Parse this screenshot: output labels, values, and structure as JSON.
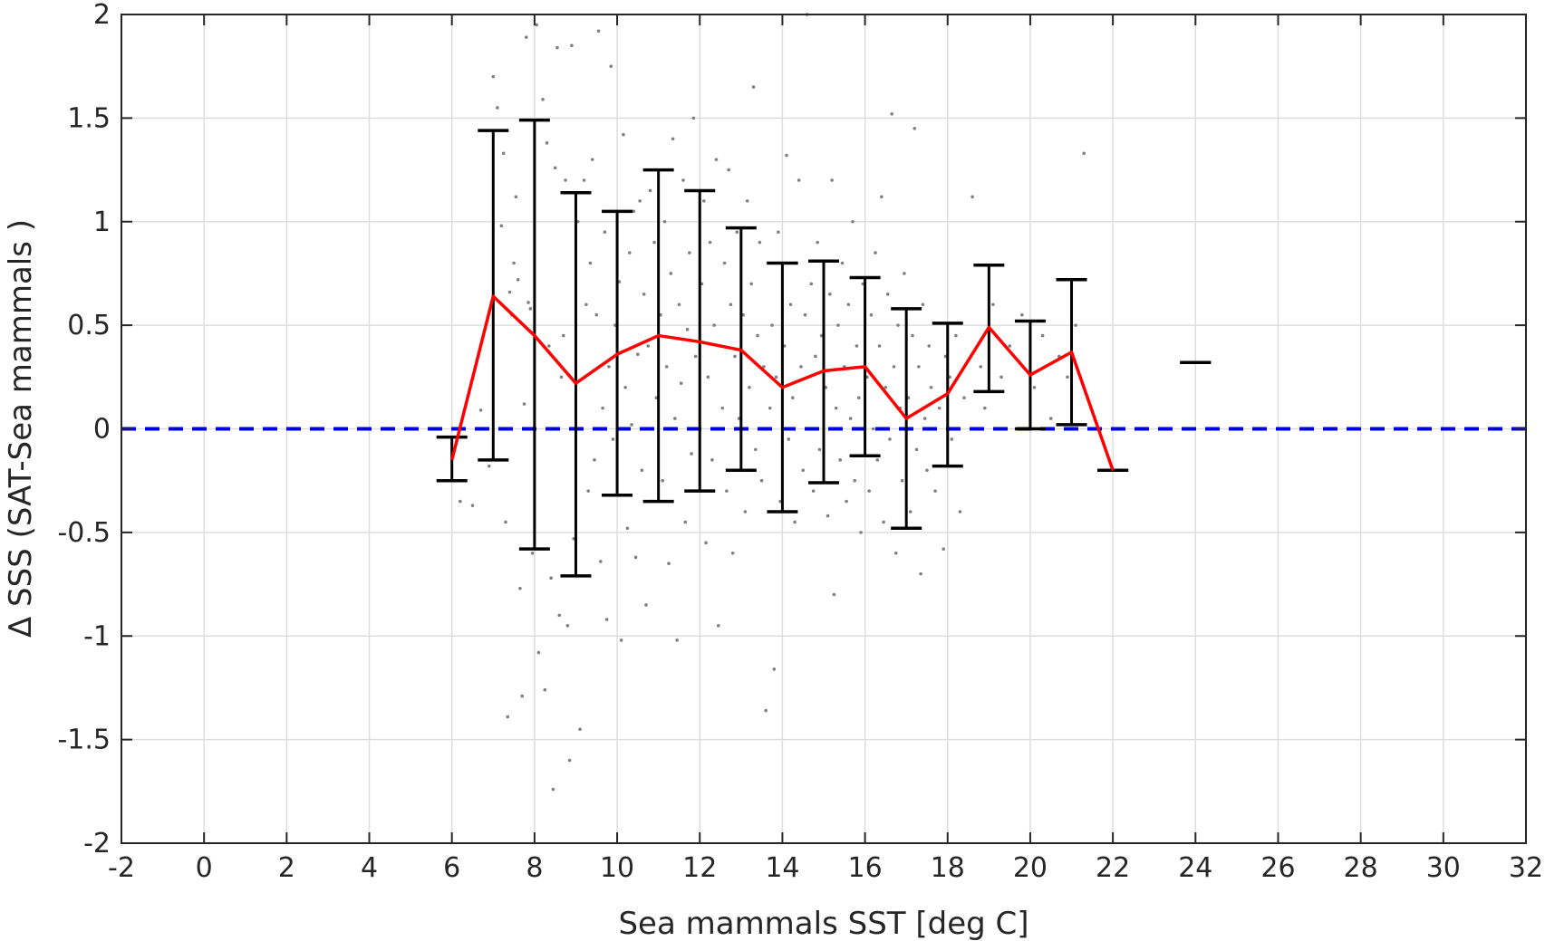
{
  "chart_data": {
    "type": "scatter",
    "title": "",
    "xlabel": "Sea mammals  SST [deg C]",
    "ylabel": "Δ SSS (SAT-Sea mammals )",
    "xlim": [
      -2,
      32
    ],
    "ylim": [
      -2,
      2
    ],
    "xticks": [
      "-2",
      "0",
      "2",
      "4",
      "6",
      "8",
      "10",
      "12",
      "14",
      "16",
      "18",
      "20",
      "22",
      "24",
      "26",
      "28",
      "30",
      "32"
    ],
    "yticks": [
      "-2",
      "-1.5",
      "-1",
      "-0.5",
      "0",
      "0.5",
      "1",
      "1.5",
      "2"
    ],
    "grid": true,
    "legend": "none",
    "colors": {
      "points": "#808080",
      "mean_line": "#ff0000",
      "error_bars": "#000000",
      "zero_line": "#0000dd",
      "grid": "#dddddd",
      "axis": "#262626"
    },
    "mean_line": {
      "x": [
        6,
        7,
        8,
        9,
        10,
        11,
        12,
        13,
        14,
        15,
        16,
        17,
        18,
        19,
        20,
        21,
        22
      ],
      "y": [
        -0.15,
        0.64,
        0.45,
        0.22,
        0.36,
        0.45,
        0.42,
        0.38,
        0.2,
        0.28,
        0.3,
        0.05,
        0.17,
        0.49,
        0.26,
        0.37,
        -0.2
      ]
    },
    "error_bars": [
      {
        "x": 6,
        "low": -0.25,
        "high": -0.04
      },
      {
        "x": 7,
        "low": -0.15,
        "high": 1.44
      },
      {
        "x": 8,
        "low": -0.58,
        "high": 1.49
      },
      {
        "x": 9,
        "low": -0.71,
        "high": 1.14
      },
      {
        "x": 10,
        "low": -0.32,
        "high": 1.05
      },
      {
        "x": 11,
        "low": -0.35,
        "high": 1.25
      },
      {
        "x": 12,
        "low": -0.3,
        "high": 1.15
      },
      {
        "x": 13,
        "low": -0.2,
        "high": 0.97
      },
      {
        "x": 14,
        "low": -0.4,
        "high": 0.8
      },
      {
        "x": 15,
        "low": -0.26,
        "high": 0.81
      },
      {
        "x": 16,
        "low": -0.13,
        "high": 0.73
      },
      {
        "x": 17,
        "low": -0.48,
        "high": 0.58
      },
      {
        "x": 18,
        "low": -0.18,
        "high": 0.51
      },
      {
        "x": 19,
        "low": 0.18,
        "high": 0.79
      },
      {
        "x": 20,
        "low": 0.0,
        "high": 0.52
      },
      {
        "x": 21,
        "low": 0.02,
        "high": 0.72
      },
      {
        "x": 22,
        "low": -0.2,
        "high": -0.2
      },
      {
        "x": 24,
        "low": 0.32,
        "high": 0.32
      }
    ],
    "reference_line": {
      "y": 0,
      "style": "dashed"
    },
    "scatter_points": [
      [
        6.2,
        -0.35
      ],
      [
        6.5,
        -0.37
      ],
      [
        6.7,
        0.09
      ],
      [
        6.9,
        -0.18
      ],
      [
        7.0,
        1.7
      ],
      [
        7.1,
        1.55
      ],
      [
        7.2,
        0.98
      ],
      [
        7.25,
        1.33
      ],
      [
        7.3,
        -0.45
      ],
      [
        7.35,
        -1.39
      ],
      [
        7.4,
        0.66
      ],
      [
        7.45,
        0.55
      ],
      [
        7.5,
        0.8
      ],
      [
        7.55,
        1.12
      ],
      [
        7.6,
        0.72
      ],
      [
        7.65,
        -0.77
      ],
      [
        7.7,
        -1.29
      ],
      [
        7.75,
        0.12
      ],
      [
        7.8,
        1.89
      ],
      [
        7.85,
        0.61
      ],
      [
        7.9,
        0.58
      ],
      [
        7.95,
        -0.6
      ],
      [
        8.05,
        1.95
      ],
      [
        8.1,
        -1.08
      ],
      [
        8.2,
        1.59
      ],
      [
        8.25,
        -1.26
      ],
      [
        8.3,
        1.38
      ],
      [
        8.35,
        0.4
      ],
      [
        8.4,
        -0.72
      ],
      [
        8.45,
        -1.74
      ],
      [
        8.5,
        1.26
      ],
      [
        8.55,
        1.84
      ],
      [
        8.6,
        -0.9
      ],
      [
        8.65,
        0.25
      ],
      [
        8.7,
        0.45
      ],
      [
        8.75,
        1.2
      ],
      [
        8.8,
        -0.95
      ],
      [
        8.85,
        -1.6
      ],
      [
        8.9,
        1.85
      ],
      [
        8.95,
        -0.53
      ],
      [
        9.05,
        1.0
      ],
      [
        9.1,
        -1.45
      ],
      [
        9.2,
        1.2
      ],
      [
        9.25,
        0.6
      ],
      [
        9.3,
        -0.3
      ],
      [
        9.35,
        0.8
      ],
      [
        9.4,
        1.3
      ],
      [
        9.45,
        -0.15
      ],
      [
        9.5,
        0.55
      ],
      [
        9.55,
        1.92
      ],
      [
        9.6,
        -0.64
      ],
      [
        9.65,
        0.1
      ],
      [
        9.7,
        0.95
      ],
      [
        9.75,
        -0.92
      ],
      [
        9.8,
        0.3
      ],
      [
        9.85,
        1.75
      ],
      [
        9.9,
        -0.05
      ],
      [
        9.95,
        0.5
      ],
      [
        10.05,
        0.71
      ],
      [
        10.1,
        -1.02
      ],
      [
        10.15,
        1.42
      ],
      [
        10.2,
        0.2
      ],
      [
        10.25,
        -0.48
      ],
      [
        10.3,
        0.85
      ],
      [
        10.35,
        0.02
      ],
      [
        10.4,
        1.05
      ],
      [
        10.45,
        -0.62
      ],
      [
        10.5,
        0.36
      ],
      [
        10.55,
        1.1
      ],
      [
        10.6,
        -0.2
      ],
      [
        10.65,
        0.65
      ],
      [
        10.7,
        -0.85
      ],
      [
        10.75,
        0.4
      ],
      [
        10.8,
        1.15
      ],
      [
        10.85,
        -0.35
      ],
      [
        10.9,
        0.9
      ],
      [
        10.95,
        0.15
      ],
      [
        11.05,
        0.55
      ],
      [
        11.1,
        -0.25
      ],
      [
        11.15,
        1.0
      ],
      [
        11.2,
        0.3
      ],
      [
        11.25,
        -0.65
      ],
      [
        11.3,
        0.75
      ],
      [
        11.35,
        1.4
      ],
      [
        11.4,
        0.05
      ],
      [
        11.45,
        -1.02
      ],
      [
        11.5,
        0.6
      ],
      [
        11.55,
        0.22
      ],
      [
        11.6,
        1.2
      ],
      [
        11.65,
        -0.45
      ],
      [
        11.7,
        0.48
      ],
      [
        11.75,
        0.85
      ],
      [
        11.8,
        -0.12
      ],
      [
        11.85,
        1.5
      ],
      [
        11.9,
        0.35
      ],
      [
        11.95,
        -0.3
      ],
      [
        12.05,
        0.7
      ],
      [
        12.1,
        1.1
      ],
      [
        12.15,
        -0.55
      ],
      [
        12.2,
        0.25
      ],
      [
        12.25,
        0.9
      ],
      [
        12.3,
        -0.15
      ],
      [
        12.35,
        0.5
      ],
      [
        12.4,
        1.3
      ],
      [
        12.45,
        -0.95
      ],
      [
        12.5,
        0.4
      ],
      [
        12.55,
        0.1
      ],
      [
        12.6,
        0.8
      ],
      [
        12.65,
        -0.3
      ],
      [
        12.7,
        1.25
      ],
      [
        12.75,
        0.6
      ],
      [
        12.8,
        -0.6
      ],
      [
        12.85,
        0.35
      ],
      [
        12.9,
        0.95
      ],
      [
        12.95,
        0.05
      ],
      [
        13.05,
        0.55
      ],
      [
        13.1,
        -0.4
      ],
      [
        13.15,
        1.1
      ],
      [
        13.2,
        0.2
      ],
      [
        13.25,
        0.7
      ],
      [
        13.3,
        1.65
      ],
      [
        13.35,
        -0.1
      ],
      [
        13.4,
        0.45
      ],
      [
        13.45,
        0.9
      ],
      [
        13.5,
        -0.25
      ],
      [
        13.55,
        0.3
      ],
      [
        13.6,
        -1.36
      ],
      [
        13.65,
        0.8
      ],
      [
        13.7,
        0.1
      ],
      [
        13.75,
        0.5
      ],
      [
        13.8,
        -1.16
      ],
      [
        13.85,
        0.25
      ],
      [
        13.9,
        0.95
      ],
      [
        13.95,
        -0.35
      ],
      [
        14.05,
        0.4
      ],
      [
        14.1,
        1.32
      ],
      [
        14.15,
        -0.05
      ],
      [
        14.2,
        0.6
      ],
      [
        14.25,
        0.15
      ],
      [
        14.3,
        -0.45
      ],
      [
        14.35,
        0.8
      ],
      [
        14.4,
        1.2
      ],
      [
        14.45,
        0.3
      ],
      [
        14.5,
        -0.2
      ],
      [
        14.55,
        0.55
      ],
      [
        14.6,
        2.0
      ],
      [
        14.65,
        0.0
      ],
      [
        14.7,
        0.7
      ],
      [
        14.75,
        -0.3
      ],
      [
        14.8,
        0.35
      ],
      [
        14.85,
        0.9
      ],
      [
        14.9,
        -0.1
      ],
      [
        14.95,
        0.45
      ],
      [
        15.05,
        0.2
      ],
      [
        15.1,
        -0.42
      ],
      [
        15.15,
        0.65
      ],
      [
        15.2,
        1.2
      ],
      [
        15.25,
        -0.8
      ],
      [
        15.3,
        0.1
      ],
      [
        15.35,
        0.5
      ],
      [
        15.4,
        -0.15
      ],
      [
        15.45,
        0.8
      ],
      [
        15.5,
        0.3
      ],
      [
        15.55,
        -0.35
      ],
      [
        15.6,
        0.6
      ],
      [
        15.65,
        0.05
      ],
      [
        15.7,
        1.0
      ],
      [
        15.75,
        -0.25
      ],
      [
        15.8,
        0.4
      ],
      [
        15.85,
        0.15
      ],
      [
        15.9,
        -0.5
      ],
      [
        15.95,
        0.7
      ],
      [
        16.05,
        0.25
      ],
      [
        16.1,
        -0.3
      ],
      [
        16.15,
        0.55
      ],
      [
        16.2,
        0.0
      ],
      [
        16.25,
        0.85
      ],
      [
        16.3,
        -0.15
      ],
      [
        16.35,
        0.4
      ],
      [
        16.4,
        1.12
      ],
      [
        16.45,
        -0.45
      ],
      [
        16.5,
        0.2
      ],
      [
        16.55,
        0.65
      ],
      [
        16.6,
        -0.05
      ],
      [
        16.65,
        1.52
      ],
      [
        16.7,
        0.3
      ],
      [
        16.75,
        -0.6
      ],
      [
        16.8,
        0.5
      ],
      [
        16.85,
        0.1
      ],
      [
        16.9,
        -0.25
      ],
      [
        16.95,
        0.75
      ],
      [
        17.05,
        0.15
      ],
      [
        17.1,
        -0.4
      ],
      [
        17.15,
        0.45
      ],
      [
        17.2,
        1.45
      ],
      [
        17.25,
        -0.1
      ],
      [
        17.3,
        0.3
      ],
      [
        17.35,
        -0.7
      ],
      [
        17.4,
        0.6
      ],
      [
        17.45,
        0.05
      ],
      [
        17.5,
        -0.2
      ],
      [
        17.55,
        0.4
      ],
      [
        17.6,
        0.2
      ],
      [
        17.7,
        -0.3
      ],
      [
        17.8,
        0.1
      ],
      [
        17.9,
        -0.58
      ],
      [
        17.95,
        0.35
      ],
      [
        18.05,
        0.25
      ],
      [
        18.1,
        -0.05
      ],
      [
        18.2,
        0.45
      ],
      [
        18.3,
        -0.4
      ],
      [
        18.4,
        0.15
      ],
      [
        18.6,
        1.12
      ],
      [
        18.8,
        0.3
      ],
      [
        18.9,
        0.1
      ],
      [
        19.1,
        0.6
      ],
      [
        19.3,
        0.25
      ],
      [
        19.5,
        0.4
      ],
      [
        19.8,
        0.55
      ],
      [
        20.1,
        0.2
      ],
      [
        20.3,
        0.45
      ],
      [
        20.5,
        0.05
      ],
      [
        20.7,
        0.35
      ],
      [
        20.9,
        0.25
      ],
      [
        21.1,
        0.5
      ],
      [
        21.3,
        1.33
      ]
    ]
  }
}
